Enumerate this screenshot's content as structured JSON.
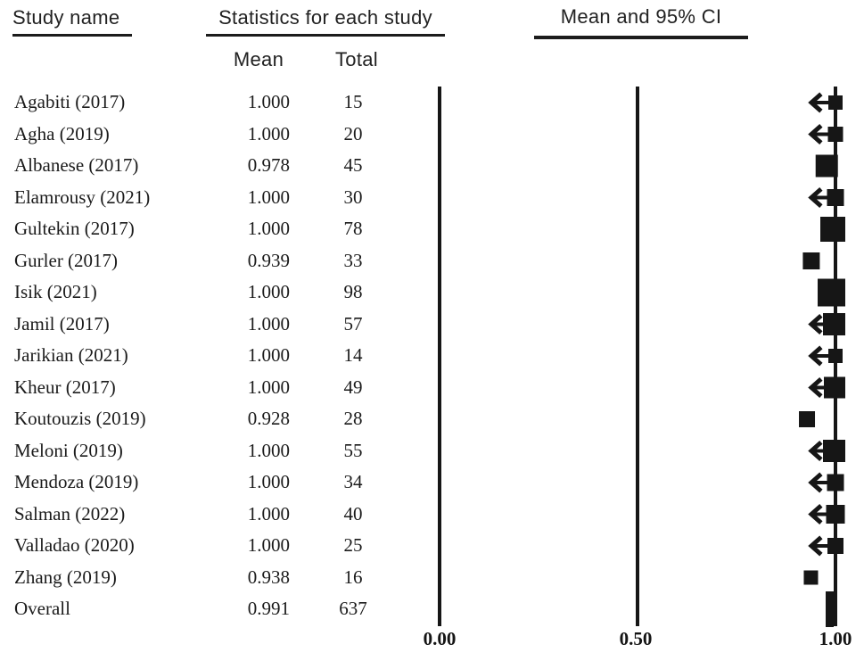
{
  "headers": {
    "study_name": "Study name",
    "statistics": "Statistics for each study",
    "mean_col": "Mean",
    "total_col": "Total",
    "ci_header": "Mean and 95% CI"
  },
  "axis": {
    "tick_labels": [
      "0.00",
      "0.50",
      "1.00"
    ],
    "tick_values": [
      0,
      0.5,
      1.0
    ],
    "xlim": [
      0,
      1
    ]
  },
  "chart_data": {
    "type": "forest",
    "title": "",
    "columns": [
      "Study name",
      "Mean",
      "Total"
    ],
    "ci_column": "Mean and 95% CI",
    "xlim": [
      0,
      1
    ],
    "x_ticks": [
      0.0,
      0.5,
      1.0
    ],
    "rows": [
      {
        "name": "Agabiti (2017)",
        "mean": 1.0,
        "mean_label": "1.000",
        "total": 15,
        "total_label": "15",
        "marker_size": 16,
        "arrow": true,
        "is_overall": false
      },
      {
        "name": "Agha (2019)",
        "mean": 1.0,
        "mean_label": "1.000",
        "total": 20,
        "total_label": "20",
        "marker_size": 17,
        "arrow": true,
        "is_overall": false
      },
      {
        "name": "Albanese (2017)",
        "mean": 0.978,
        "mean_label": "0.978",
        "total": 45,
        "total_label": "45",
        "marker_size": 25,
        "arrow": false,
        "is_overall": false
      },
      {
        "name": "Elamrousy (2021)",
        "mean": 1.0,
        "mean_label": "1.000",
        "total": 30,
        "total_label": "30",
        "marker_size": 19,
        "arrow": true,
        "is_overall": false
      },
      {
        "name": "Gultekin (2017)",
        "mean": 1.0,
        "mean_label": "1.000",
        "total": 78,
        "total_label": "78",
        "marker_size": 28,
        "arrow": false,
        "is_overall": false
      },
      {
        "name": "Gurler (2017)",
        "mean": 0.939,
        "mean_label": "0.939",
        "total": 33,
        "total_label": "33",
        "marker_size": 19,
        "arrow": false,
        "is_overall": false
      },
      {
        "name": "Isik (2021)",
        "mean": 1.0,
        "mean_label": "1.000",
        "total": 98,
        "total_label": "98",
        "marker_size": 31,
        "arrow": false,
        "is_overall": false
      },
      {
        "name": "Jamil (2017)",
        "mean": 1.0,
        "mean_label": "1.000",
        "total": 57,
        "total_label": "57",
        "marker_size": 25,
        "arrow": true,
        "is_overall": false
      },
      {
        "name": "Jarikian (2021)",
        "mean": 1.0,
        "mean_label": "1.000",
        "total": 14,
        "total_label": "14",
        "marker_size": 16,
        "arrow": true,
        "is_overall": false
      },
      {
        "name": "Kheur (2017)",
        "mean": 1.0,
        "mean_label": "1.000",
        "total": 49,
        "total_label": "49",
        "marker_size": 24,
        "arrow": true,
        "is_overall": false
      },
      {
        "name": "Koutouzis (2019)",
        "mean": 0.928,
        "mean_label": "0.928",
        "total": 28,
        "total_label": "28",
        "marker_size": 18,
        "arrow": false,
        "is_overall": false
      },
      {
        "name": "Meloni (2019)",
        "mean": 1.0,
        "mean_label": "1.000",
        "total": 55,
        "total_label": "55",
        "marker_size": 25,
        "arrow": true,
        "is_overall": false
      },
      {
        "name": "Mendoza (2019)",
        "mean": 1.0,
        "mean_label": "1.000",
        "total": 34,
        "total_label": "34",
        "marker_size": 19,
        "arrow": true,
        "is_overall": false
      },
      {
        "name": "Salman (2022)",
        "mean": 1.0,
        "mean_label": "1.000",
        "total": 40,
        "total_label": "40",
        "marker_size": 21,
        "arrow": true,
        "is_overall": false
      },
      {
        "name": "Valladao (2020)",
        "mean": 1.0,
        "mean_label": "1.000",
        "total": 25,
        "total_label": "25",
        "marker_size": 18,
        "arrow": true,
        "is_overall": false
      },
      {
        "name": "Zhang (2019)",
        "mean": 0.938,
        "mean_label": "0.938",
        "total": 16,
        "total_label": "16",
        "marker_size": 16,
        "arrow": false,
        "is_overall": false
      },
      {
        "name": "Overall",
        "mean": 0.991,
        "mean_label": "0.991",
        "total": 637,
        "total_label": "637",
        "marker_size": 40,
        "arrow": false,
        "is_overall": true
      }
    ]
  },
  "colors": {
    "ink": "#161616",
    "background": "#ffffff"
  }
}
